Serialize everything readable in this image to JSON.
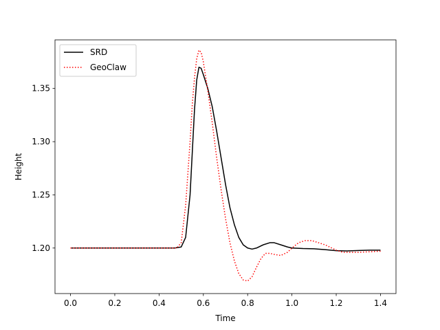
{
  "chart_data": {
    "type": "line",
    "xlabel": "Time",
    "ylabel": "Height",
    "xlim": [
      -0.07,
      1.47
    ],
    "ylim": [
      1.1572,
      1.3957
    ],
    "xticks": [
      0.0,
      0.2,
      0.4,
      0.6,
      0.8,
      1.0,
      1.2,
      1.4
    ],
    "xtick_labels": [
      "0.0",
      "0.2",
      "0.4",
      "0.6",
      "0.8",
      "1.0",
      "1.2",
      "1.4"
    ],
    "yticks": [
      1.2,
      1.25,
      1.3,
      1.35
    ],
    "ytick_labels": [
      "1.20",
      "1.25",
      "1.30",
      "1.35"
    ],
    "grid": false,
    "legend_position": "upper-left",
    "series": [
      {
        "name": "SRD",
        "color": "#000000",
        "linestyle": "solid",
        "x": [
          0.0,
          0.1,
          0.2,
          0.3,
          0.4,
          0.47,
          0.5,
          0.52,
          0.54,
          0.55,
          0.56,
          0.57,
          0.58,
          0.59,
          0.6,
          0.62,
          0.64,
          0.66,
          0.68,
          0.7,
          0.72,
          0.74,
          0.76,
          0.78,
          0.8,
          0.82,
          0.84,
          0.87,
          0.9,
          0.92,
          0.95,
          0.98,
          1.0,
          1.05,
          1.1,
          1.15,
          1.2,
          1.25,
          1.3,
          1.35,
          1.4
        ],
        "y": [
          1.2,
          1.2,
          1.2,
          1.2,
          1.2,
          1.2,
          1.201,
          1.21,
          1.25,
          1.29,
          1.33,
          1.358,
          1.37,
          1.369,
          1.363,
          1.35,
          1.333,
          1.31,
          1.285,
          1.26,
          1.238,
          1.222,
          1.21,
          1.203,
          1.2,
          1.199,
          1.2,
          1.203,
          1.205,
          1.205,
          1.203,
          1.201,
          1.2,
          1.1995,
          1.1993,
          1.1985,
          1.1975,
          1.1973,
          1.1977,
          1.198,
          1.198
        ]
      },
      {
        "name": "GeoClaw",
        "color": "#ff0000",
        "linestyle": "dotted",
        "x": [
          0.0,
          0.1,
          0.2,
          0.3,
          0.4,
          0.48,
          0.5,
          0.52,
          0.54,
          0.55,
          0.56,
          0.57,
          0.58,
          0.59,
          0.6,
          0.62,
          0.64,
          0.66,
          0.68,
          0.7,
          0.72,
          0.74,
          0.76,
          0.78,
          0.8,
          0.82,
          0.84,
          0.86,
          0.88,
          0.9,
          0.92,
          0.95,
          0.98,
          1.0,
          1.03,
          1.06,
          1.09,
          1.12,
          1.15,
          1.18,
          1.2,
          1.23,
          1.26,
          1.3,
          1.35,
          1.4
        ],
        "y": [
          1.2,
          1.2,
          1.2,
          1.2,
          1.2,
          1.2,
          1.205,
          1.24,
          1.3,
          1.335,
          1.36,
          1.378,
          1.386,
          1.384,
          1.375,
          1.348,
          1.318,
          1.285,
          1.255,
          1.228,
          1.205,
          1.188,
          1.176,
          1.17,
          1.169,
          1.173,
          1.182,
          1.19,
          1.195,
          1.195,
          1.194,
          1.193,
          1.196,
          1.2,
          1.205,
          1.207,
          1.207,
          1.205,
          1.203,
          1.2,
          1.198,
          1.196,
          1.196,
          1.196,
          1.1965,
          1.197
        ]
      }
    ]
  }
}
